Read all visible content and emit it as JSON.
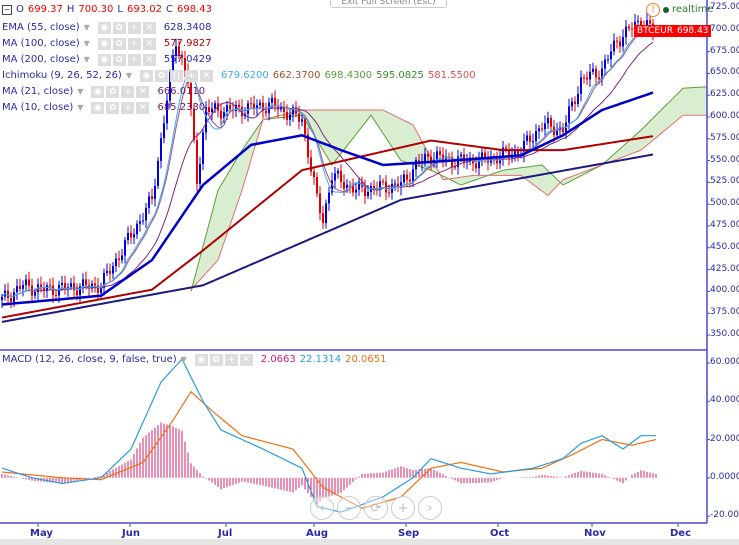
{
  "toolbar": {
    "exit_fullscreen": "Exit Full Screen (Esc)",
    "realtime": "realtime"
  },
  "ohlc": {
    "o_label": "O",
    "o": "699.37",
    "h_label": "H",
    "h": "700.30",
    "l_label": "L",
    "l": "693.02",
    "c_label": "C",
    "c": "698.43"
  },
  "indicators": [
    {
      "name": "EMA (55, close)",
      "values": [
        "628.3408"
      ],
      "colors": [
        "#2a2aa8"
      ]
    },
    {
      "name": "MA (100, close)",
      "values": [
        "577.9827"
      ],
      "colors": [
        "#b00000"
      ]
    },
    {
      "name": "MA (200, close)",
      "values": [
        "557.0429"
      ],
      "colors": [
        "#2a2aa8"
      ]
    },
    {
      "name": "Ichimoku (9, 26, 52, 26)",
      "values": [
        "679.6200",
        "662.3700",
        "698.4300",
        "595.0825",
        "581.5500"
      ],
      "colors": [
        "#3fa9f5",
        "#a0522d",
        "#5a9e3a",
        "#3c8c2a",
        "#e05050"
      ]
    },
    {
      "name": "MA (21, close)",
      "values": [
        "666.0110"
      ],
      "colors": [
        "#6a1b6a"
      ]
    },
    {
      "name": "MA (10, close)",
      "values": [
        "685.2330"
      ],
      "colors": [
        "#6a1b6a"
      ]
    }
  ],
  "macd": {
    "name": "MACD (12, 26, close, 9, false, true)",
    "hist": "2.0663",
    "macd": "22.1314",
    "signal": "20.0651",
    "colors": [
      "#d0206a",
      "#2a9de0",
      "#f07010"
    ]
  },
  "symbol_tag": {
    "symbol": "BTCEUR",
    "price": "698.43"
  },
  "price_axis": [
    "725.00",
    "700.00",
    "675.00",
    "650.00",
    "625.00",
    "600.00",
    "575.00",
    "550.00",
    "525.00",
    "500.00",
    "475.00",
    "450.00",
    "425.00",
    "400.00",
    "375.00",
    "350.00"
  ],
  "macd_axis": [
    "60.0000",
    "40.0000",
    "20.0000",
    "0.0000",
    "-20.0000"
  ],
  "months": [
    "May",
    "Jun",
    "Jul",
    "Aug",
    "Sep",
    "Oct",
    "Nov",
    "Dec"
  ],
  "nav": {
    "back": "‹",
    "zoom_out": "−",
    "reset": "⟳",
    "zoom_in": "+",
    "forward": "›"
  },
  "chart_data": {
    "type": "candlestick",
    "x_unit": "days from chart start",
    "price_range": [
      325,
      735
    ],
    "close_keypoints": [
      [
        0,
        390
      ],
      [
        7,
        407
      ],
      [
        13,
        402
      ],
      [
        33,
        407
      ],
      [
        40,
        447
      ],
      [
        50,
        505
      ],
      [
        55,
        620
      ],
      [
        58,
        688
      ],
      [
        62,
        642
      ],
      [
        65,
        528
      ],
      [
        68,
        608
      ],
      [
        77,
        608
      ],
      [
        90,
        614
      ],
      [
        100,
        597
      ],
      [
        105,
        505
      ],
      [
        107,
        482
      ],
      [
        110,
        533
      ],
      [
        118,
        516
      ],
      [
        133,
        522
      ],
      [
        138,
        545
      ],
      [
        143,
        556
      ],
      [
        150,
        550
      ],
      [
        160,
        550
      ],
      [
        167,
        556
      ],
      [
        173,
        562
      ],
      [
        180,
        591
      ],
      [
        187,
        585
      ],
      [
        193,
        642
      ],
      [
        200,
        654
      ],
      [
        205,
        688
      ],
      [
        213,
        711
      ],
      [
        217,
        698
      ]
    ],
    "ema55": [
      [
        0,
        385
      ],
      [
        33,
        395
      ],
      [
        50,
        436
      ],
      [
        67,
        522
      ],
      [
        83,
        568
      ],
      [
        100,
        579
      ],
      [
        113,
        562
      ],
      [
        127,
        545
      ],
      [
        150,
        550
      ],
      [
        173,
        556
      ],
      [
        187,
        579
      ],
      [
        200,
        608
      ],
      [
        217,
        628
      ]
    ],
    "ma100": [
      [
        0,
        370
      ],
      [
        50,
        402
      ],
      [
        67,
        447
      ],
      [
        100,
        539
      ],
      [
        143,
        573
      ],
      [
        167,
        562
      ],
      [
        187,
        562
      ],
      [
        217,
        578
      ]
    ],
    "ma200": [
      [
        0,
        365
      ],
      [
        67,
        407
      ],
      [
        133,
        505
      ],
      [
        217,
        557
      ]
    ],
    "ichimoku_span_a": [
      [
        63,
        400
      ],
      [
        72,
        516
      ],
      [
        80,
        562
      ],
      [
        87,
        597
      ],
      [
        100,
        602
      ],
      [
        110,
        545
      ],
      [
        123,
        602
      ],
      [
        133,
        550
      ],
      [
        143,
        539
      ],
      [
        153,
        522
      ],
      [
        167,
        539
      ],
      [
        180,
        545
      ],
      [
        187,
        522
      ],
      [
        200,
        545
      ],
      [
        213,
        585
      ],
      [
        227,
        633
      ],
      [
        246,
        637
      ]
    ],
    "ichimoku_span_b": [
      [
        63,
        402
      ],
      [
        72,
        436
      ],
      [
        80,
        516
      ],
      [
        87,
        597
      ],
      [
        100,
        608
      ],
      [
        127,
        608
      ],
      [
        137,
        591
      ],
      [
        147,
        528
      ],
      [
        157,
        533
      ],
      [
        173,
        533
      ],
      [
        182,
        510
      ],
      [
        187,
        528
      ],
      [
        213,
        562
      ],
      [
        227,
        602
      ],
      [
        246,
        602
      ]
    ],
    "macd_line": [
      [
        0,
        5
      ],
      [
        10,
        0
      ],
      [
        20,
        -3
      ],
      [
        33,
        0
      ],
      [
        43,
        15
      ],
      [
        53,
        50
      ],
      [
        60,
        62
      ],
      [
        67,
        40
      ],
      [
        73,
        25
      ],
      [
        87,
        15
      ],
      [
        100,
        5
      ],
      [
        105,
        -15
      ],
      [
        113,
        -18
      ],
      [
        127,
        -10
      ],
      [
        137,
        0
      ],
      [
        143,
        10
      ],
      [
        153,
        5
      ],
      [
        163,
        2
      ],
      [
        177,
        5
      ],
      [
        187,
        10
      ],
      [
        193,
        18
      ],
      [
        200,
        22
      ],
      [
        207,
        15
      ],
      [
        213,
        22
      ],
      [
        218,
        22
      ]
    ],
    "signal_line": [
      [
        0,
        3
      ],
      [
        20,
        0
      ],
      [
        33,
        -1
      ],
      [
        47,
        8
      ],
      [
        57,
        30
      ],
      [
        63,
        45
      ],
      [
        70,
        35
      ],
      [
        80,
        22
      ],
      [
        97,
        15
      ],
      [
        107,
        -5
      ],
      [
        120,
        -16
      ],
      [
        133,
        -10
      ],
      [
        143,
        5
      ],
      [
        153,
        8
      ],
      [
        167,
        3
      ],
      [
        180,
        5
      ],
      [
        190,
        12
      ],
      [
        200,
        20
      ],
      [
        210,
        17
      ],
      [
        218,
        20
      ]
    ],
    "macd_range": [
      -25,
      65
    ]
  }
}
